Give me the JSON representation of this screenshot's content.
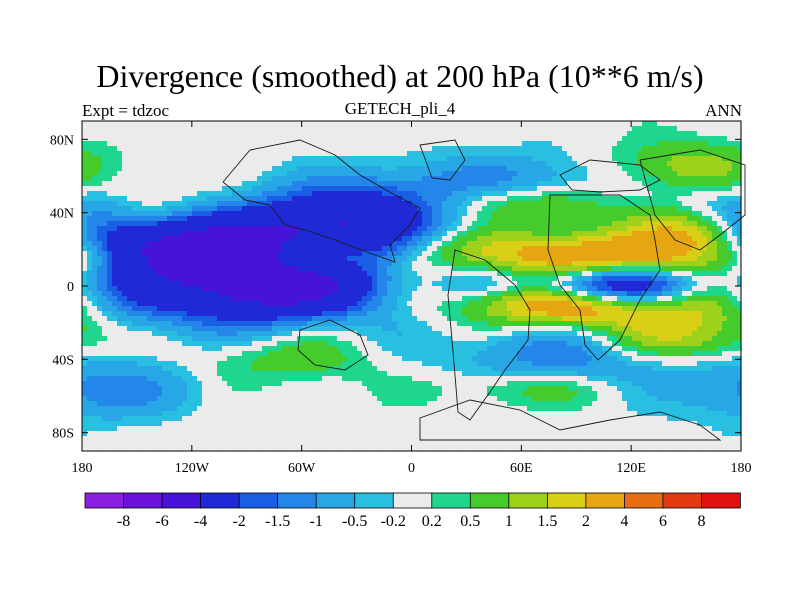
{
  "chart_data": {
    "type": "heatmap",
    "title": "Divergence (smoothed) at 200 hPa (10**6 m/s)",
    "subtitle_left": "Expt = tdzoc",
    "subtitle_center": "GETECH_pli_4",
    "subtitle_right": "ANN",
    "x_ticks": [
      "180",
      "120W",
      "60W",
      "0",
      "60E",
      "120E",
      "180"
    ],
    "x_tick_values": [
      -180,
      -120,
      -60,
      0,
      60,
      120,
      180
    ],
    "y_ticks": [
      "80N",
      "40N",
      "0",
      "40S",
      "80S"
    ],
    "y_tick_values": [
      80,
      40,
      0,
      -40,
      -80
    ],
    "xlim": [
      -180,
      180
    ],
    "ylim": [
      -90,
      90
    ],
    "colorbar": {
      "labels": [
        "-8",
        "-6",
        "-4",
        "-2",
        "-1.5",
        "-1",
        "-0.5",
        "-0.2",
        "0.2",
        "0.5",
        "1",
        "1.5",
        "2",
        "4",
        "6",
        "8"
      ],
      "levels": [
        -8,
        -6,
        -4,
        -2,
        -1.5,
        -1,
        -0.5,
        -0.2,
        0.2,
        0.5,
        1,
        1.5,
        2,
        4,
        6,
        8
      ],
      "colors": [
        "#8a1fe0",
        "#6a12dc",
        "#4614d9",
        "#1f2ad6",
        "#1a5ee6",
        "#2386e8",
        "#27a7e6",
        "#28bfe0",
        "#ebebeb",
        "#1fd68f",
        "#45cc2c",
        "#9dd11c",
        "#d9cf16",
        "#e6a612",
        "#e86d12",
        "#e33a12",
        "#e01010"
      ]
    },
    "features": [
      {
        "lon": -130,
        "lat": 25,
        "amp": -3.2,
        "wx": 45,
        "wy": 12
      },
      {
        "lon": -110,
        "lat": 20,
        "amp": -1.5,
        "wx": 40,
        "wy": 10
      },
      {
        "lon": -80,
        "lat": 0,
        "amp": -3.6,
        "wx": 38,
        "wy": 12
      },
      {
        "lon": -50,
        "lat": 3,
        "amp": -1.4,
        "wx": 30,
        "wy": 12
      },
      {
        "lon": -40,
        "lat": 30,
        "amp": -3.4,
        "wx": 38,
        "wy": 14
      },
      {
        "lon": -10,
        "lat": 45,
        "amp": -1.4,
        "wx": 40,
        "wy": 12
      },
      {
        "lon": -170,
        "lat": 5,
        "amp": -1.6,
        "wx": 25,
        "wy": 20
      },
      {
        "lon": -170,
        "lat": 40,
        "amp": -2.2,
        "wx": 30,
        "wy": 10
      },
      {
        "lon": -110,
        "lat": -5,
        "amp": -1.2,
        "wx": 45,
        "wy": 15
      },
      {
        "lon": 40,
        "lat": 10,
        "amp": -1.1,
        "wx": 25,
        "wy": 12
      },
      {
        "lon": 110,
        "lat": 0,
        "amp": -4.4,
        "wx": 30,
        "wy": 8
      },
      {
        "lon": 90,
        "lat": -40,
        "amp": -1.6,
        "wx": 50,
        "wy": 14
      },
      {
        "lon": -140,
        "lat": -40,
        "amp": -1.4,
        "wx": 45,
        "wy": 12
      },
      {
        "lon": 60,
        "lat": 55,
        "amp": -1.2,
        "wx": 40,
        "wy": 12
      },
      {
        "lon": -170,
        "lat": -60,
        "amp": -1.0,
        "wx": 30,
        "wy": 10
      },
      {
        "lon": 100,
        "lat": 15,
        "amp": 3.0,
        "wx": 55,
        "wy": 10
      },
      {
        "lon": 90,
        "lat": -10,
        "amp": 3.4,
        "wx": 40,
        "wy": 8
      },
      {
        "lon": -55,
        "lat": 15,
        "amp": 2.6,
        "wx": 20,
        "wy": 8
      },
      {
        "lon": -150,
        "lat": 40,
        "amp": 2.4,
        "wx": 25,
        "wy": 10
      },
      {
        "lon": 160,
        "lat": 30,
        "amp": 2.8,
        "wx": 25,
        "wy": 10
      },
      {
        "lon": 150,
        "lat": -30,
        "amp": 2.0,
        "wx": 40,
        "wy": 10
      },
      {
        "lon": 55,
        "lat": 45,
        "amp": 1.8,
        "wx": 40,
        "wy": 8
      },
      {
        "lon": 20,
        "lat": 20,
        "amp": 1.2,
        "wx": 40,
        "wy": 10
      },
      {
        "lon": -100,
        "lat": -40,
        "amp": 1.4,
        "wx": 50,
        "wy": 10
      },
      {
        "lon": 170,
        "lat": -10,
        "amp": 1.4,
        "wx": 25,
        "wy": 12
      },
      {
        "lon": 150,
        "lat": 65,
        "amp": 1.3,
        "wx": 30,
        "wy": 10
      },
      {
        "lon": 70,
        "lat": -55,
        "amp": 1.2,
        "wx": 40,
        "wy": 8
      },
      {
        "lon": -175,
        "lat": 15,
        "amp": 1.4,
        "wx": 15,
        "wy": 8
      }
    ]
  }
}
